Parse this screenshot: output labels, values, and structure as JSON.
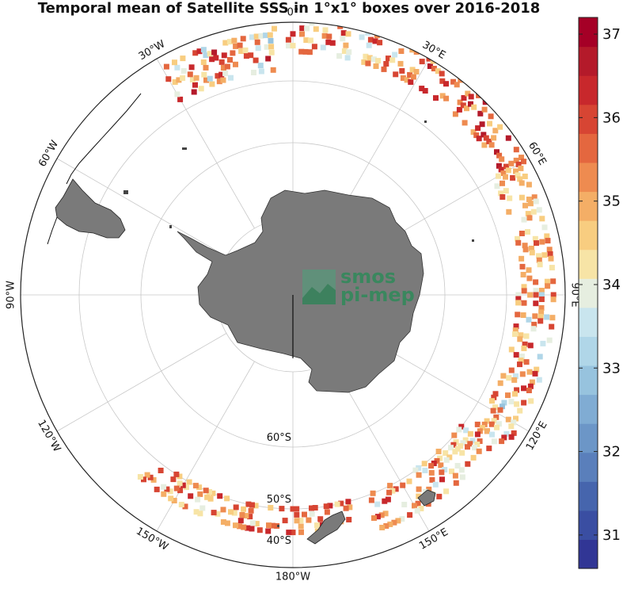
{
  "title": "Temporal mean of Satellite SSS in 1°x1° boxes over 2016-2018",
  "logo": {
    "line1": "smos",
    "line2": "pi-mep"
  },
  "longitude_labels": [
    {
      "name": "lon-0",
      "text": "0°"
    },
    {
      "name": "lon-30e",
      "text": "30°E"
    },
    {
      "name": "lon-60e",
      "text": "60°E"
    },
    {
      "name": "lon-90e",
      "text": "90°E"
    },
    {
      "name": "lon-120e",
      "text": "120°E"
    },
    {
      "name": "lon-150e",
      "text": "150°E"
    },
    {
      "name": "lon-180w",
      "text": "180°W"
    },
    {
      "name": "lon-150w",
      "text": "150°W"
    },
    {
      "name": "lon-120w",
      "text": "120°W"
    },
    {
      "name": "lon-90w",
      "text": "90°W"
    },
    {
      "name": "lon-60w",
      "text": "60°W"
    },
    {
      "name": "lon-30w",
      "text": "30°W"
    }
  ],
  "latitude_labels": [
    {
      "name": "lat-60s",
      "text": "60°S"
    },
    {
      "name": "lat-50s",
      "text": "50°S"
    },
    {
      "name": "lat-40s",
      "text": "40°S"
    }
  ],
  "colorbar": {
    "min": 30.6,
    "max": 37.2,
    "ticks": [
      "31",
      "32",
      "33",
      "34",
      "35",
      "36",
      "37"
    ],
    "colors": [
      "#313695",
      "#3a4ea2",
      "#4665ad",
      "#5a7fbb",
      "#6c96c7",
      "#80acd3",
      "#97c3de",
      "#b0d6e8",
      "#c9e5ee",
      "#e6eee0",
      "#f7e4a6",
      "#f8cd80",
      "#f4ae66",
      "#ee8b50",
      "#e4673f",
      "#d74533",
      "#c8282c",
      "#b41a2a",
      "#a50026"
    ]
  },
  "chart_data": {
    "type": "heatmap",
    "title": "Temporal mean of Satellite SSS in 1°x1° boxes over 2016-2018",
    "variable": "SSS",
    "projection": "south polar stereographic",
    "latitude_circles": [
      "60°S",
      "50°S",
      "40°S"
    ],
    "colorbar_range": [
      30.6,
      37.2
    ],
    "regions": [
      {
        "lon_range": [
          -30,
          -5
        ],
        "lat_range": [
          -48,
          -42
        ],
        "sss_range": [
          33.0,
          36.8
        ]
      },
      {
        "lon_range": [
          -5,
          25
        ],
        "lat_range": [
          -45,
          -40
        ],
        "sss_range": [
          33.5,
          36.5
        ]
      },
      {
        "lon_range": [
          25,
          60
        ],
        "lat_range": [
          -45,
          -40
        ],
        "sss_range": [
          34.5,
          36.8
        ]
      },
      {
        "lon_range": [
          60,
          90
        ],
        "lat_range": [
          -47,
          -42
        ],
        "sss_range": [
          34.0,
          36.0
        ]
      },
      {
        "lon_range": [
          90,
          125
        ],
        "lat_range": [
          -48,
          -42
        ],
        "sss_range": [
          33.0,
          36.5
        ]
      },
      {
        "lon_range": [
          125,
          160
        ],
        "lat_range": [
          -50,
          -44
        ],
        "sss_range": [
          33.5,
          36.5
        ]
      },
      {
        "lon_range": [
          165,
          220
        ],
        "lat_range": [
          -50,
          -46
        ],
        "sss_range": [
          34.0,
          36.5
        ]
      }
    ]
  }
}
